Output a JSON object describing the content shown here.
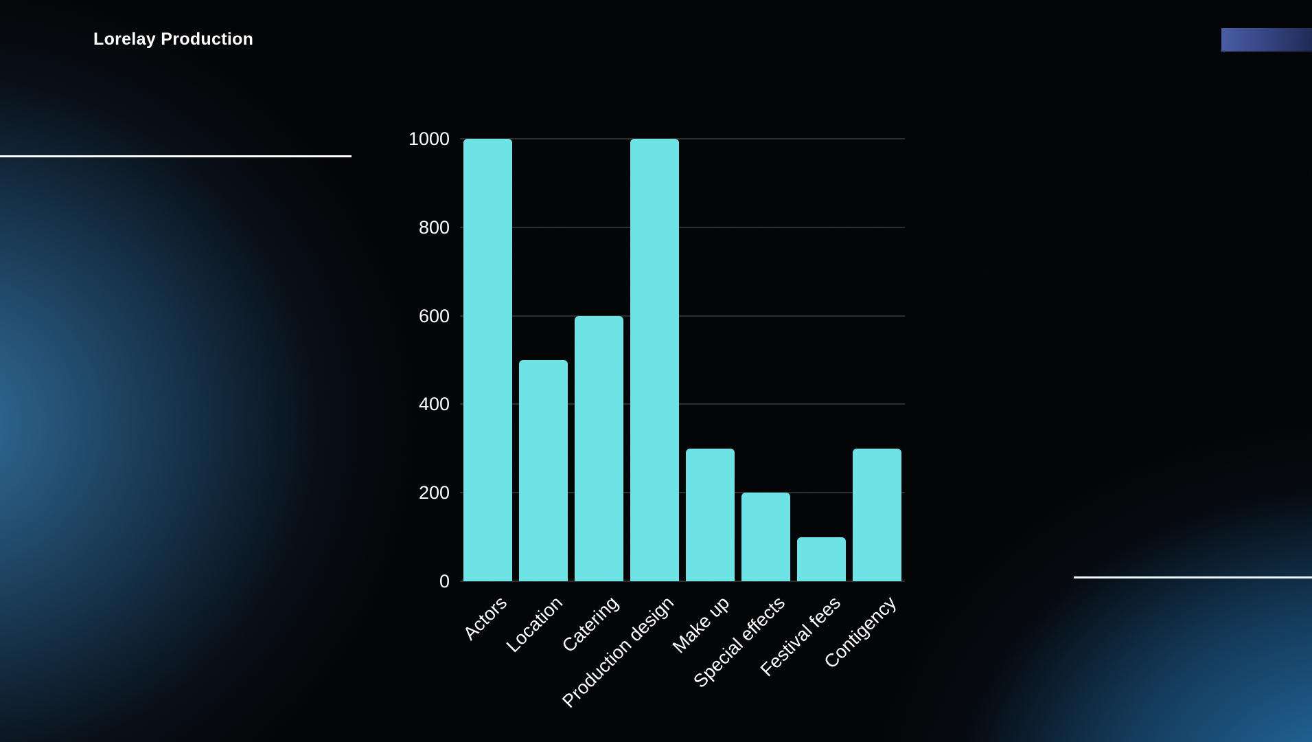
{
  "slide": {
    "title": "Lorelay Production"
  },
  "decor": {
    "background": "#010204",
    "glow_left_color": "#2a6a9e",
    "glow_right_color": "#2070ad",
    "line_color": "#ffffff",
    "accent_bar_gradient_start": "#4a5ea6",
    "accent_bar_gradient_end": "#1f2a55"
  },
  "chart_data": {
    "type": "bar",
    "title": "",
    "categories": [
      "Actors",
      "Location",
      "Catering",
      "Production design",
      "Make up",
      "Special effects",
      "Festival fees",
      "Contigency"
    ],
    "values": [
      1000,
      500,
      600,
      1000,
      300,
      200,
      100,
      300
    ],
    "xlabel": "",
    "ylabel": "",
    "ylim": [
      0,
      1000
    ],
    "yticks": [
      0,
      200,
      400,
      600,
      800,
      1000
    ],
    "bar_color": "#6ee3e5",
    "gridline_color": "#2f2f2f",
    "tick_label_color": "#ffffff",
    "grid": true,
    "legend": "none"
  }
}
